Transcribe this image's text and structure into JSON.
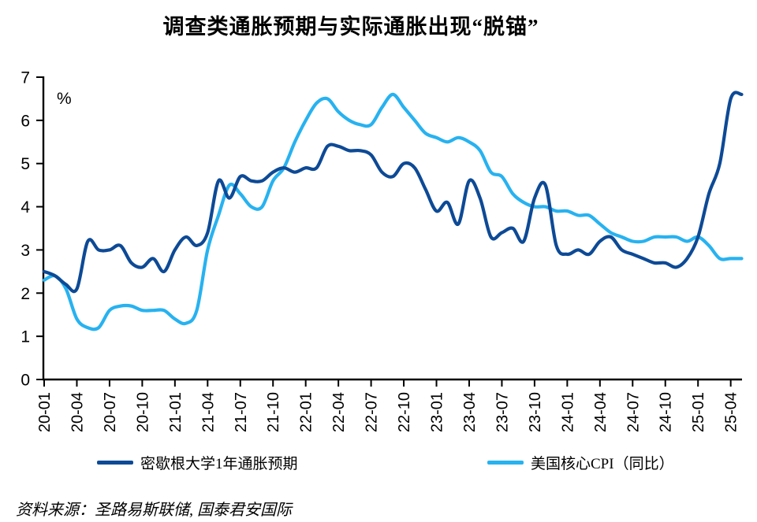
{
  "title": "调查类通胀预期与实际通胀出现“脱锚”",
  "percent_label": "%",
  "source": "资料来源：圣路易斯联储, 国泰君安国际",
  "colors": {
    "michigan": "#0d4a96",
    "core_cpi": "#27b2f0",
    "axis": "#000000"
  },
  "legend": [
    {
      "label": "密歇根大学1年通胀预期",
      "color": "#0d4a96"
    },
    {
      "label": "美国核心CPI（同比）",
      "color": "#27b2f0"
    }
  ],
  "chart_data": {
    "type": "line",
    "title": "调查类通胀预期与实际通胀出现“脱锚”",
    "xlabel": "",
    "ylabel": "%",
    "ylim": [
      0,
      7
    ],
    "y_ticks": [
      0,
      1,
      2,
      3,
      4,
      5,
      6,
      7
    ],
    "grid": false,
    "legend_position": "bottom",
    "x": [
      "20-01",
      "20-02",
      "20-03",
      "20-04",
      "20-05",
      "20-06",
      "20-07",
      "20-08",
      "20-09",
      "20-10",
      "20-11",
      "20-12",
      "21-01",
      "21-02",
      "21-03",
      "21-04",
      "21-05",
      "21-06",
      "21-07",
      "21-08",
      "21-09",
      "21-10",
      "21-11",
      "21-12",
      "22-01",
      "22-02",
      "22-03",
      "22-04",
      "22-05",
      "22-06",
      "22-07",
      "22-08",
      "22-09",
      "22-10",
      "22-11",
      "22-12",
      "23-01",
      "23-02",
      "23-03",
      "23-04",
      "23-05",
      "23-06",
      "23-07",
      "23-08",
      "23-09",
      "23-10",
      "23-11",
      "23-12",
      "24-01",
      "24-02",
      "24-03",
      "24-04",
      "24-05",
      "24-06",
      "24-07",
      "24-08",
      "24-09",
      "24-10",
      "24-11",
      "24-12",
      "25-01",
      "25-02",
      "25-03",
      "25-04",
      "25-05"
    ],
    "x_tick_labels": [
      "20-01",
      "20-04",
      "20-07",
      "20-10",
      "21-01",
      "21-04",
      "21-07",
      "21-10",
      "22-01",
      "22-04",
      "22-07",
      "22-10",
      "23-01",
      "23-04",
      "23-07",
      "23-10",
      "24-01",
      "24-04",
      "24-07",
      "24-10",
      "25-01",
      "25-04"
    ],
    "series": [
      {
        "name": "密歇根大学1年通胀预期",
        "color": "#0d4a96",
        "values": [
          2.5,
          2.4,
          2.2,
          2.1,
          3.2,
          3.0,
          3.0,
          3.1,
          2.7,
          2.6,
          2.8,
          2.5,
          3.0,
          3.3,
          3.1,
          3.4,
          4.6,
          4.2,
          4.7,
          4.6,
          4.6,
          4.8,
          4.9,
          4.8,
          4.9,
          4.9,
          5.4,
          5.4,
          5.3,
          5.3,
          5.2,
          4.8,
          4.7,
          5.0,
          4.9,
          4.4,
          3.9,
          4.1,
          3.6,
          4.6,
          4.2,
          3.3,
          3.4,
          3.5,
          3.2,
          4.2,
          4.5,
          3.1,
          2.9,
          3.0,
          2.9,
          3.2,
          3.3,
          3.0,
          2.9,
          2.8,
          2.7,
          2.7,
          2.6,
          2.8,
          3.3,
          4.3,
          5.0,
          6.5,
          6.6
        ]
      },
      {
        "name": "美国核心CPI（同比）",
        "color": "#27b2f0",
        "values": [
          2.3,
          2.4,
          2.1,
          1.4,
          1.2,
          1.2,
          1.6,
          1.7,
          1.7,
          1.6,
          1.6,
          1.6,
          1.4,
          1.3,
          1.6,
          3.0,
          3.8,
          4.5,
          4.3,
          4.0,
          4.0,
          4.6,
          4.9,
          5.5,
          6.0,
          6.4,
          6.5,
          6.2,
          6.0,
          5.9,
          5.9,
          6.3,
          6.6,
          6.3,
          6.0,
          5.7,
          5.6,
          5.5,
          5.6,
          5.5,
          5.3,
          4.8,
          4.7,
          4.3,
          4.1,
          4.0,
          4.0,
          3.9,
          3.9,
          3.8,
          3.8,
          3.6,
          3.4,
          3.3,
          3.2,
          3.2,
          3.3,
          3.3,
          3.3,
          3.2,
          3.3,
          3.1,
          2.8,
          2.8,
          2.8
        ]
      }
    ]
  }
}
